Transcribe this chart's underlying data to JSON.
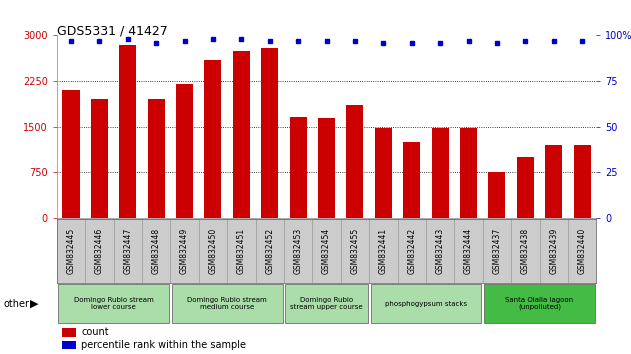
{
  "title": "GDS5331 / 41427",
  "samples": [
    "GSM832445",
    "GSM832446",
    "GSM832447",
    "GSM832448",
    "GSM832449",
    "GSM832450",
    "GSM832451",
    "GSM832452",
    "GSM832453",
    "GSM832454",
    "GSM832455",
    "GSM832441",
    "GSM832442",
    "GSM832443",
    "GSM832444",
    "GSM832437",
    "GSM832438",
    "GSM832439",
    "GSM832440"
  ],
  "counts": [
    2100,
    1950,
    2850,
    1950,
    2200,
    2600,
    2750,
    2800,
    1650,
    1640,
    1850,
    1480,
    1250,
    1480,
    1480,
    750,
    1000,
    1200,
    1200
  ],
  "percentiles": [
    97,
    97,
    98,
    96,
    97,
    98,
    98,
    97,
    97,
    97,
    97,
    96,
    96,
    96,
    97,
    96,
    97,
    97,
    97
  ],
  "bar_color": "#cc0000",
  "dot_color": "#0000cc",
  "ylim_left": [
    0,
    3000
  ],
  "ylim_right": [
    0,
    100
  ],
  "yticks_left": [
    0,
    750,
    1500,
    2250,
    3000
  ],
  "yticks_right": [
    0,
    25,
    50,
    75,
    100
  ],
  "groups": [
    {
      "label": "Domingo Rubio stream\nlower course",
      "start": 0,
      "end": 3,
      "color": "#aaddaa"
    },
    {
      "label": "Domingo Rubio stream\nmedium course",
      "start": 4,
      "end": 7,
      "color": "#aaddaa"
    },
    {
      "label": "Domingo Rubio\nstream upper course",
      "start": 8,
      "end": 10,
      "color": "#aaddaa"
    },
    {
      "label": "phosphogypsum stacks",
      "start": 11,
      "end": 14,
      "color": "#aaddaa"
    },
    {
      "label": "Santa Olalla lagoon\n(unpolluted)",
      "start": 15,
      "end": 18,
      "color": "#44bb44"
    }
  ],
  "background_color": "#ffffff",
  "tick_area_color": "#cccccc",
  "other_label": "other"
}
